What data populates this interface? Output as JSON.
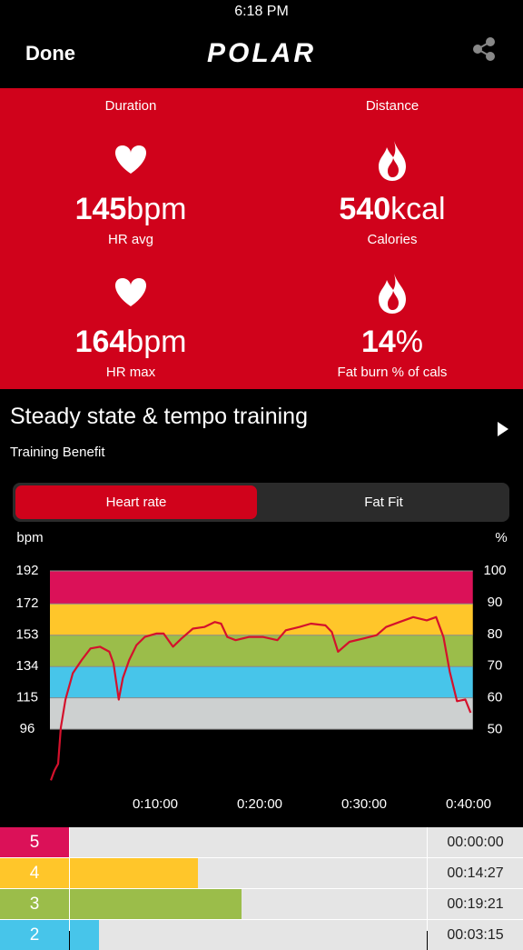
{
  "status_bar": {
    "time": "6:18 PM"
  },
  "nav": {
    "back": "Done",
    "logo": "POLAR"
  },
  "summary": {
    "top_labels": [
      "Duration",
      "Distance"
    ],
    "stats": [
      {
        "icon": "heart",
        "value": "145",
        "unit": "bpm",
        "label": "HR avg"
      },
      {
        "icon": "flame",
        "value": "540",
        "unit": "kcal",
        "label": "Calories"
      },
      {
        "icon": "heart",
        "value": "164",
        "unit": "bpm",
        "label": "HR max"
      },
      {
        "icon": "flame",
        "value": "14",
        "unit": "%",
        "label": "Fat burn % of cals"
      }
    ]
  },
  "training": {
    "title": "Steady state & tempo training",
    "subtitle": "Training Benefit"
  },
  "tabs": {
    "items": [
      "Heart rate",
      "Fat Fit"
    ],
    "active": 0
  },
  "chart_data": {
    "type": "line",
    "y_label": "bpm",
    "y2_label": "%",
    "color": "#d4112c",
    "x": [
      0,
      0.35,
      0.7,
      0.96,
      1.4,
      2.1,
      2.96,
      3.8,
      4.7,
      5.6,
      6.0,
      6.5,
      6.9,
      7.5,
      8.2,
      9.0,
      10.1,
      10.8,
      11.7,
      12.5,
      13.6,
      14.7,
      15.7,
      16.3,
      16.9,
      17.7,
      19.0,
      20.3,
      21.7,
      22.5,
      23.8,
      24.9,
      26.3,
      26.9,
      27.5,
      28.6,
      29.9,
      31.2,
      32.1,
      33.4,
      34.7,
      36.0,
      36.9,
      37.6,
      38.2,
      38.9,
      39.7,
      40.2
    ],
    "values": [
      65,
      71,
      75,
      97,
      114,
      130,
      138,
      145,
      146,
      143,
      136,
      114,
      127,
      138,
      147,
      152,
      154,
      154,
      146,
      151,
      157,
      158,
      161,
      160,
      152,
      150,
      152,
      152,
      150,
      156,
      158,
      160,
      159,
      155,
      143,
      149,
      151,
      153,
      158,
      161,
      164,
      162,
      164,
      152,
      131,
      113,
      114,
      106
    ],
    "xlim": [
      0,
      40.5
    ],
    "xticks": [
      {
        "value": 10,
        "label": "0:10:00"
      },
      {
        "value": 20,
        "label": "0:20:00"
      },
      {
        "value": 30,
        "label": "0:30:00"
      },
      {
        "value": 40,
        "label": "0:40:00"
      }
    ],
    "ylim": [
      63,
      192
    ],
    "yticks": [
      96,
      115,
      134,
      153,
      172,
      192
    ],
    "y2lim": [
      33,
      100
    ],
    "y2ticks": [
      50,
      60,
      70,
      80,
      90,
      100
    ],
    "zones": [
      {
        "from": 96,
        "to": 115,
        "color": "#cdd0d0"
      },
      {
        "from": 115,
        "to": 134,
        "color": "#47c5ea"
      },
      {
        "from": 134,
        "to": 153,
        "color": "#9bbd4a"
      },
      {
        "from": 153,
        "to": 172,
        "color": "#ffc62a"
      },
      {
        "from": 172,
        "to": 192,
        "color": "#db1158"
      }
    ]
  },
  "zone_table": {
    "rows": [
      {
        "zone": "5",
        "duration": "00:00:00",
        "minutes": 0,
        "color": "#db1158"
      },
      {
        "zone": "4",
        "duration": "00:14:27",
        "minutes": 14.45,
        "color": "#ffc62a"
      },
      {
        "zone": "3",
        "duration": "00:19:21",
        "minutes": 19.35,
        "color": "#9bbd4a"
      },
      {
        "zone": "2",
        "duration": "00:03:15",
        "minutes": 3.25,
        "color": "#47c5ea"
      }
    ]
  }
}
